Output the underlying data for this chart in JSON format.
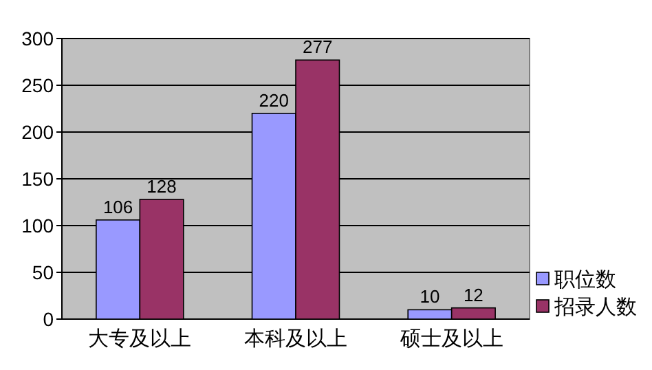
{
  "chart_data": {
    "type": "bar",
    "categories": [
      "大专及以上",
      "本科及以上",
      "硕士及以上"
    ],
    "series": [
      {
        "name": "职位数",
        "color": "#9999ff",
        "values": [
          106,
          220,
          10
        ]
      },
      {
        "name": "招录人数",
        "color": "#993366",
        "values": [
          128,
          277,
          12
        ]
      }
    ],
    "ylim": [
      0,
      300
    ],
    "yticks": [
      0,
      50,
      100,
      150,
      200,
      250,
      300
    ],
    "grid": "y",
    "data_labels": true,
    "legend": "bottom right"
  }
}
